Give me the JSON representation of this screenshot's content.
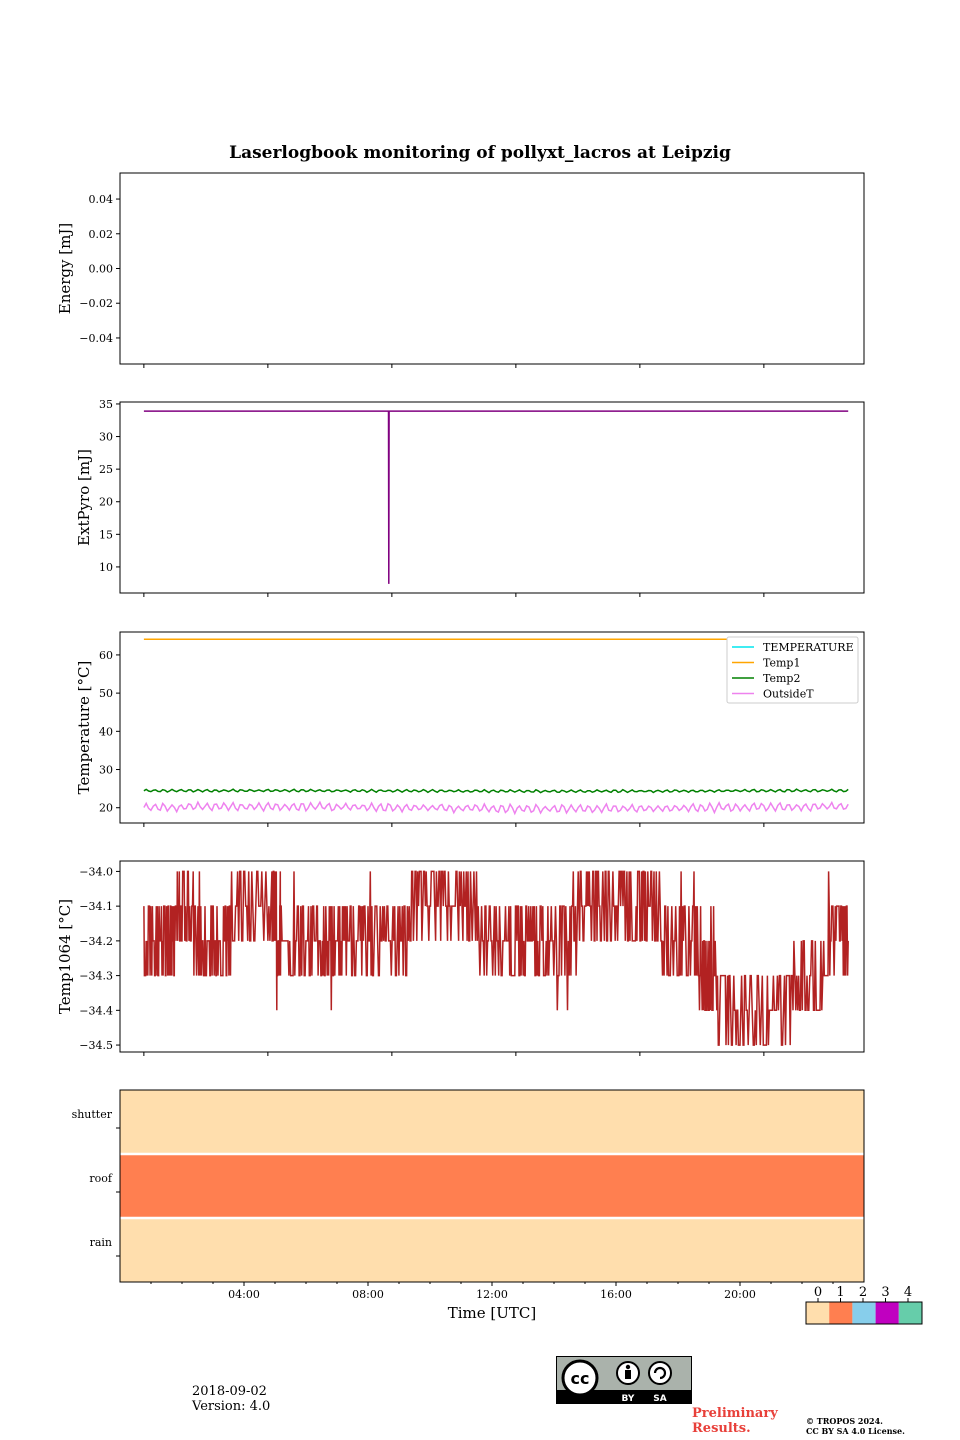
{
  "title": "Laserlogbook monitoring of pollyxt_lacros at Leipzig",
  "footer": {
    "date": "2018-09-02",
    "version": "Version: 4.0",
    "preliminary_line1": "Preliminary",
    "preliminary_line2": "Results.",
    "copyright_line1": "© TROPOS 2024.",
    "copyright_line2": "CC BY SA 4.0 License.",
    "license_by": "BY",
    "license_sa": "SA",
    "license_cc": "cc"
  },
  "chart_data": [
    {
      "type": "line",
      "ylabel": "Energy [mJ]",
      "ylim": [
        -0.055,
        0.055
      ],
      "yticks": [
        0.04,
        0.02,
        0.0,
        -0.02,
        -0.04
      ],
      "ytick_labels": [
        "0.04",
        "0.02",
        "0.00",
        "−0.02",
        "−0.04"
      ],
      "series": []
    },
    {
      "type": "line",
      "ylabel": "ExtPyro [mJ]",
      "ylim": [
        6.0,
        35.3
      ],
      "yticks": [
        35,
        30,
        25,
        20,
        15,
        10
      ],
      "ytick_labels": [
        "35",
        "30",
        "25",
        "20",
        "15",
        "10"
      ],
      "series": [
        {
          "color": "#800080",
          "baseline": 33.9,
          "x_range_hours": [
            0.77,
            23.49
          ],
          "dips": [
            {
              "x_hours": 8.67,
              "y": 7.4
            }
          ]
        }
      ]
    },
    {
      "type": "line",
      "ylabel": "Temperature [°C]",
      "ylim": [
        16,
        66
      ],
      "yticks": [
        60,
        50,
        40,
        30,
        20
      ],
      "ytick_labels": [
        "60",
        "50",
        "40",
        "30",
        "20"
      ],
      "legend_loc": "upper right",
      "series": [
        {
          "name": "TEMPERATURE",
          "color": "#00e5ee",
          "values": []
        },
        {
          "name": "Temp1",
          "color": "#ffa500",
          "baseline": 64.1
        },
        {
          "name": "Temp2",
          "color": "#008000",
          "baseline": 24.4,
          "amplitude": 0.4
        },
        {
          "name": "OutsideT",
          "color": "#ee82ee",
          "baseline": 20.0,
          "amplitude": 1.3
        }
      ]
    },
    {
      "type": "line",
      "ylabel": "Temp1064 [°C]",
      "ylim": [
        -34.52,
        -33.97
      ],
      "yticks": [
        -34.0,
        -34.1,
        -34.2,
        -34.3,
        -34.4,
        -34.5
      ],
      "ytick_labels": [
        "−34.0",
        "−34.1",
        "−34.2",
        "−34.3",
        "−34.4",
        "−34.5"
      ],
      "series": [
        {
          "color": "#b22222",
          "levels": [
            [
              0.77,
              -34.25
            ],
            [
              1.5,
              -34.2
            ],
            [
              2.0,
              -34.1
            ],
            [
              2.9,
              -34.25
            ],
            [
              3.6,
              -34.15
            ],
            [
              4.9,
              -34.1
            ],
            [
              5.2,
              -34.2
            ],
            [
              6.3,
              -34.2
            ],
            [
              7.2,
              -34.25
            ],
            [
              8.2,
              -34.2
            ],
            [
              9.3,
              -34.15
            ],
            [
              10.4,
              -34.1
            ],
            [
              11.5,
              -34.15
            ],
            [
              12.6,
              -34.2
            ],
            [
              13.5,
              -34.25
            ],
            [
              14.6,
              -34.15
            ],
            [
              15.5,
              -34.1
            ],
            [
              16.5,
              -34.1
            ],
            [
              17.5,
              -34.15
            ],
            [
              18.5,
              -34.2
            ],
            [
              19.2,
              -34.35
            ],
            [
              20.2,
              -34.4
            ],
            [
              21.5,
              -34.35
            ],
            [
              22.7,
              -34.25
            ],
            [
              23.49,
              -34.2
            ]
          ]
        }
      ]
    },
    {
      "type": "heatmap",
      "xlabel": "Time [UTC]",
      "rows": [
        "shutter",
        "roof",
        "rain"
      ],
      "row_values": [
        0,
        1,
        0
      ],
      "xtick_labels": [
        "04:00",
        "08:00",
        "12:00",
        "16:00",
        "20:00"
      ],
      "xtick_hours": [
        4,
        8,
        12,
        16,
        20
      ],
      "xlim_hours": [
        0,
        24
      ],
      "colorbar": {
        "labels": [
          "0",
          "1",
          "2",
          "3",
          "4"
        ],
        "colors": [
          "#ffdead",
          "#ff7f50",
          "#87ceeb",
          "#c000c0",
          "#66cdaa"
        ]
      }
    }
  ]
}
